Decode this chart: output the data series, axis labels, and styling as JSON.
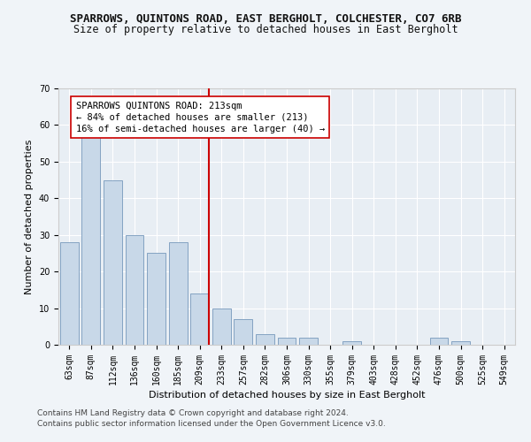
{
  "title_line1": "SPARROWS, QUINTONS ROAD, EAST BERGHOLT, COLCHESTER, CO7 6RB",
  "title_line2": "Size of property relative to detached houses in East Bergholt",
  "xlabel": "Distribution of detached houses by size in East Bergholt",
  "ylabel": "Number of detached properties",
  "categories": [
    "63sqm",
    "87sqm",
    "112sqm",
    "136sqm",
    "160sqm",
    "185sqm",
    "209sqm",
    "233sqm",
    "257sqm",
    "282sqm",
    "306sqm",
    "330sqm",
    "355sqm",
    "379sqm",
    "403sqm",
    "428sqm",
    "452sqm",
    "476sqm",
    "500sqm",
    "525sqm",
    "549sqm"
  ],
  "values": [
    28,
    57,
    45,
    30,
    25,
    28,
    14,
    10,
    7,
    3,
    2,
    2,
    0,
    1,
    0,
    0,
    0,
    2,
    1,
    0,
    0
  ],
  "bar_color": "#c8d8e8",
  "bar_edge_color": "#7799bb",
  "highlight_index": 6,
  "highlight_color": "#cc0000",
  "annotation_text": "SPARROWS QUINTONS ROAD: 213sqm\n← 84% of detached houses are smaller (213)\n16% of semi-detached houses are larger (40) →",
  "annotation_box_color": "#ffffff",
  "annotation_box_edge": "#cc0000",
  "ylim": [
    0,
    70
  ],
  "yticks": [
    0,
    10,
    20,
    30,
    40,
    50,
    60,
    70
  ],
  "background_color": "#e8eef4",
  "fig_background_color": "#f0f4f8",
  "footer_line1": "Contains HM Land Registry data © Crown copyright and database right 2024.",
  "footer_line2": "Contains public sector information licensed under the Open Government Licence v3.0.",
  "title_fontsize": 9,
  "subtitle_fontsize": 8.5,
  "axis_label_fontsize": 8,
  "tick_fontsize": 7,
  "annotation_fontsize": 7.5,
  "footer_fontsize": 6.5
}
